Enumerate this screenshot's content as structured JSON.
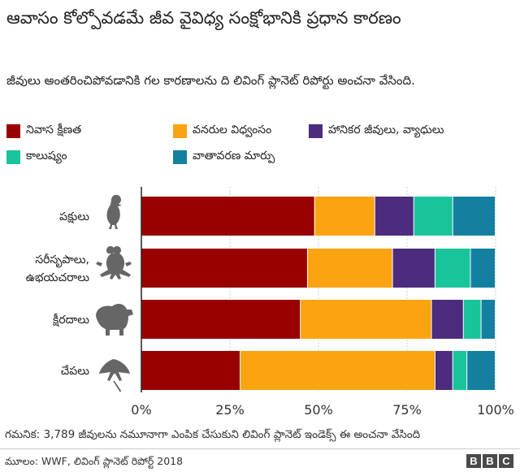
{
  "title": "ఆవాసం కోల్పోవడమే జీవ వైవిధ్య సంక్షోభానికి ప్రధాన కారణం",
  "subtitle": "జీవులు అంతరించిపోవడానికి గల కారణాలను ది లివింగ్ ప్లానెట్ రిపోర్టు అంచనా వేసింది.",
  "note": "గమనిక: 3,789 జీవులను నమూనాగా ఎంపిక చేసుకుని లివింగ్ ప్లానెట్ ఇండెక్స్ ఈ అంచనా వేసింది",
  "source": "మూలం: WWF, లివింగ్ ప్లానెట్ రిపోర్ట్ 2018",
  "logo": [
    "B",
    "B",
    "C"
  ],
  "chart_data": {
    "type": "bar",
    "orientation": "horizontal",
    "stacked": true,
    "title": "ఆవాసం కోల్పోవడమే జీవ వైవిధ్య సంక్షోభానికి ప్రధాన కారణం",
    "categories": [
      "పక్షులు",
      "సరీసృపాలు, ఉభయచరాలు",
      "క్షీరదాలు",
      "చేపలు"
    ],
    "category_lines": [
      [
        "పక్షులు"
      ],
      [
        "సరీసృపాలు,",
        "ఉభయచరాలు"
      ],
      [
        "క్షీరదాలు"
      ],
      [
        "చేపలు"
      ]
    ],
    "category_icons": [
      "bird-icon",
      "frog-icon",
      "bear-icon",
      "ray-icon"
    ],
    "series": [
      {
        "name": "నివాస క్షీణత",
        "color": "#990000",
        "values": [
          49,
          47,
          45,
          28
        ]
      },
      {
        "name": "వనరుల విధ్వంసం",
        "color": "#fca311",
        "values": [
          17,
          24,
          37,
          55
        ]
      },
      {
        "name": "హానికర జీవులు, వ్యాధులు",
        "color": "#4c2c7f",
        "values": [
          11,
          12,
          9,
          5
        ]
      },
      {
        "name": "కాలుష్యం",
        "color": "#1ac49b",
        "values": [
          11,
          10,
          5,
          4
        ]
      },
      {
        "name": "వాతావరణ మార్పు",
        "color": "#1380a1",
        "values": [
          12,
          7,
          4,
          8
        ]
      }
    ],
    "xlim": [
      0,
      100
    ],
    "ticks": [
      "0%",
      "25%",
      "50%",
      "75%",
      "100%"
    ],
    "grid": true,
    "legend_position": "top"
  }
}
